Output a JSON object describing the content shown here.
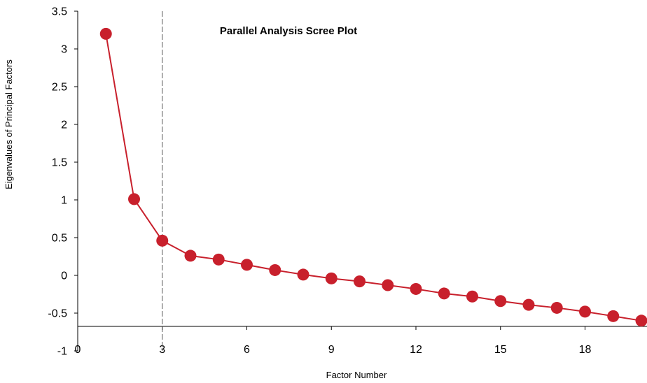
{
  "chart_data": {
    "type": "line",
    "title": "Parallel Analysis Scree Plot",
    "xlabel": "Factor Number",
    "ylabel": "Eigenvalues of Principal Factors",
    "xlim": [
      0,
      20
    ],
    "ylim": [
      -1,
      3.5
    ],
    "x_ticks": [
      0,
      3,
      6,
      9,
      12,
      15,
      18
    ],
    "x_tick_labels": [
      "0",
      "3",
      "6",
      "9",
      "12",
      "15",
      "18"
    ],
    "y_ticks": [
      -1,
      -0.5,
      0,
      0.5,
      1,
      1.5,
      2,
      2.5,
      3,
      3.5
    ],
    "y_tick_labels": [
      "-1",
      "-0.5",
      "0",
      "0.5",
      "1",
      "1.5",
      "2",
      "2.5",
      "3",
      "3.5"
    ],
    "reference_line_x": 3,
    "grid": false,
    "colors": {
      "series": "#c8202c",
      "reference_line": "#555555",
      "axis": "#000000"
    },
    "series": [
      {
        "x": [
          1,
          2,
          3,
          4,
          5,
          6,
          7,
          8,
          9,
          10,
          11,
          12,
          13,
          14,
          15,
          16,
          17,
          18,
          19,
          20
        ],
        "values": [
          3.2,
          1.01,
          0.46,
          0.26,
          0.21,
          0.14,
          0.07,
          0.01,
          -0.04,
          -0.08,
          -0.13,
          -0.18,
          -0.24,
          -0.28,
          -0.34,
          -0.39,
          -0.43,
          -0.48,
          -0.54,
          -0.6
        ]
      }
    ]
  }
}
